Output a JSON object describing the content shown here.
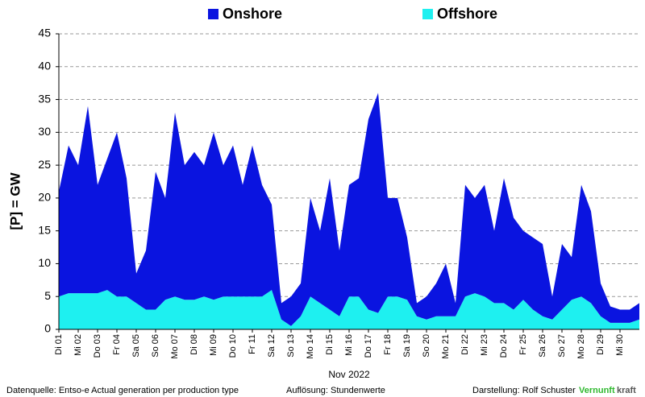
{
  "chart_data": {
    "type": "stacked_area",
    "ylabel": "[P]  =  GW",
    "xlabel": "Nov 2022",
    "xlim": [
      1,
      31
    ],
    "xticks": [
      {
        "value": 1,
        "label": "Di 01"
      },
      {
        "value": 2,
        "label": "Mi 02"
      },
      {
        "value": 3,
        "label": "Do 03"
      },
      {
        "value": 4,
        "label": "Fr 04"
      },
      {
        "value": 5,
        "label": "Sa 05"
      },
      {
        "value": 6,
        "label": "So 06"
      },
      {
        "value": 7,
        "label": "Mo 07"
      },
      {
        "value": 8,
        "label": "Di 08"
      },
      {
        "value": 9,
        "label": "Mi 09"
      },
      {
        "value": 10,
        "label": "Do 10"
      },
      {
        "value": 11,
        "label": "Fr 11"
      },
      {
        "value": 12,
        "label": "Sa 12"
      },
      {
        "value": 13,
        "label": "So 13"
      },
      {
        "value": 14,
        "label": "Mo 14"
      },
      {
        "value": 15,
        "label": "Di 15"
      },
      {
        "value": 16,
        "label": "Mi 16"
      },
      {
        "value": 17,
        "label": "Do 17"
      },
      {
        "value": 18,
        "label": "Fr 18"
      },
      {
        "value": 19,
        "label": "Sa 19"
      },
      {
        "value": 20,
        "label": "So 20"
      },
      {
        "value": 21,
        "label": "Mo 21"
      },
      {
        "value": 22,
        "label": "Di 22"
      },
      {
        "value": 23,
        "label": "Mi 23"
      },
      {
        "value": 24,
        "label": "Do 24"
      },
      {
        "value": 25,
        "label": "Fr 25"
      },
      {
        "value": 26,
        "label": "Sa 26"
      },
      {
        "value": 27,
        "label": "So 27"
      },
      {
        "value": 28,
        "label": "Mo 28"
      },
      {
        "value": 29,
        "label": "Di 29"
      },
      {
        "value": 30,
        "label": "Mi 30"
      }
    ],
    "ylim": [
      0,
      45
    ],
    "yticks": [
      0,
      5,
      10,
      15,
      20,
      25,
      30,
      35,
      40,
      45
    ],
    "grid": true,
    "legend": "top",
    "x": [
      1,
      1.5,
      2,
      2.5,
      3,
      3.5,
      4,
      4.5,
      5,
      5.5,
      6,
      6.5,
      7,
      7.5,
      8,
      8.5,
      9,
      9.5,
      10,
      10.5,
      11,
      11.5,
      12,
      12.5,
      13,
      13.5,
      14,
      14.5,
      15,
      15.5,
      16,
      16.5,
      17,
      17.5,
      18,
      18.5,
      19,
      19.5,
      20,
      20.5,
      21,
      21.5,
      22,
      22.5,
      23,
      23.5,
      24,
      24.5,
      25,
      25.5,
      26,
      26.5,
      27,
      27.5,
      28,
      28.5,
      29,
      29.5,
      30,
      30.5,
      31
    ],
    "series": [
      {
        "name": "Onshore",
        "color": "#0a14e0",
        "values": [
          16,
          22.5,
          19.5,
          28.5,
          16.5,
          20,
          25,
          18,
          4.5,
          9,
          21,
          15.5,
          28,
          20.5,
          22.5,
          20,
          25.5,
          20,
          23,
          17,
          23,
          17,
          13,
          2.5,
          4.5,
          5,
          15,
          11,
          20,
          10,
          17,
          18,
          29,
          33.5,
          15,
          15,
          9.5,
          2,
          3.5,
          5,
          8,
          2,
          17,
          14.5,
          17,
          11,
          19,
          14,
          10.5,
          11,
          11,
          3.5,
          10,
          6.5,
          17,
          14,
          5,
          2.5,
          2,
          2,
          2.5
        ]
      },
      {
        "name": "Offshore",
        "color": "#1ef0f0",
        "values": [
          5,
          5.5,
          5.5,
          5.5,
          5.5,
          6,
          5,
          5,
          4,
          3,
          3,
          4.5,
          5,
          4.5,
          4.5,
          5,
          4.5,
          5,
          5,
          5,
          5,
          5,
          6,
          1.5,
          0.5,
          2,
          5,
          4,
          3,
          2,
          5,
          5,
          3,
          2.5,
          5,
          5,
          4.5,
          2,
          1.5,
          2,
          2,
          2,
          5,
          5.5,
          5,
          4,
          4,
          3,
          4.5,
          3,
          2,
          1.5,
          3,
          4.5,
          5,
          4,
          2,
          1,
          1,
          1,
          1.5
        ]
      }
    ]
  },
  "footer": {
    "source": "Datenquelle: Entso-e  Actual generation per production type",
    "resolution": "Auflösung: Stundenwerte",
    "author": "Darstellung:  Rolf Schuster",
    "brand_green": "Vernunft",
    "brand_rest": "kraft"
  }
}
